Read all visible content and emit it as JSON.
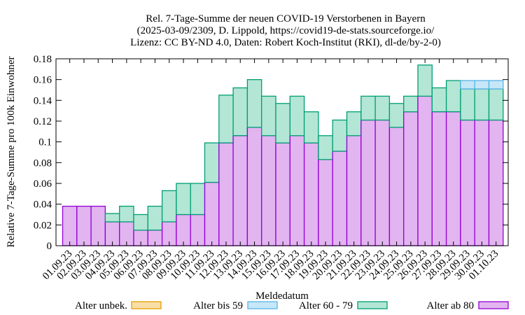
{
  "title": {
    "line1": "Rel. 7-Tage-Summe der neuen COVID-19 Verstorbenen in Bayern",
    "line2": "(2025-03-09/2309, D. Lippold, https://covid19-de-stats.sourceforge.io/",
    "line3": "Lizenz: CC BY-ND 4.0, Daten: Robert Koch-Institut (RKI), dl-de/by-2-0)"
  },
  "chart_data": {
    "type": "bar",
    "stacked": true,
    "xlabel": "Meldedatum",
    "ylabel": "Relative 7-Tage-Summe pro 100k Einwohner",
    "ylim": [
      0,
      0.18
    ],
    "yticks": [
      0,
      0.02,
      0.04,
      0.06,
      0.08,
      0.1,
      0.12,
      0.14,
      0.16,
      0.18
    ],
    "ytick_labels": [
      "0",
      "0.02",
      "0.04",
      "0.06",
      "0.08",
      "0.1",
      "0.12",
      "0.14",
      "0.16",
      "0.18"
    ],
    "grid": false,
    "legend_position": "bottom",
    "categories": [
      "01.09.23",
      "02.09.23",
      "03.09.23",
      "04.09.23",
      "05.09.23",
      "06.09.23",
      "07.09.23",
      "08.09.23",
      "09.09.23",
      "10.09.23",
      "11.09.23",
      "12.09.23",
      "13.09.23",
      "14.09.23",
      "15.09.23",
      "16.09.23",
      "17.09.23",
      "18.09.23",
      "19.09.23",
      "20.09.23",
      "21.09.23",
      "22.09.23",
      "23.09.23",
      "24.09.23",
      "25.09.23",
      "26.09.23",
      "27.09.23",
      "28.09.23",
      "29.09.23",
      "30.09.23",
      "01.10.23"
    ],
    "series": [
      {
        "name": "Alter ab 80",
        "color": "#e2b4f0",
        "edge": "#9400d3",
        "values": [
          0.038,
          0.038,
          0.038,
          0.023,
          0.023,
          0.015,
          0.015,
          0.023,
          0.03,
          0.03,
          0.061,
          0.099,
          0.106,
          0.114,
          0.106,
          0.099,
          0.106,
          0.099,
          0.083,
          0.091,
          0.106,
          0.121,
          0.121,
          0.114,
          0.129,
          0.144,
          0.129,
          0.129,
          0.121,
          0.121,
          0.121
        ]
      },
      {
        "name": "Alter 60 - 79",
        "color": "#b3e6d5",
        "edge": "#009e73",
        "values": [
          0,
          0,
          0,
          0.008,
          0.015,
          0.015,
          0.023,
          0.03,
          0.03,
          0.03,
          0.038,
          0.046,
          0.046,
          0.046,
          0.038,
          0.038,
          0.038,
          0.03,
          0.023,
          0.03,
          0.023,
          0.023,
          0.023,
          0.023,
          0.015,
          0.03,
          0.023,
          0.03,
          0.03,
          0.03,
          0.03
        ]
      },
      {
        "name": "Alter bis 59",
        "color": "#c6e7f7",
        "edge": "#56b4e9",
        "values": [
          0,
          0,
          0,
          0,
          0,
          0,
          0,
          0,
          0,
          0,
          0,
          0,
          0,
          0,
          0,
          0,
          0,
          0,
          0,
          0,
          0,
          0,
          0,
          0,
          0,
          0,
          0,
          0,
          0.008,
          0.008,
          0.008
        ]
      },
      {
        "name": "Alter unbek.",
        "color": "#f8dfa8",
        "edge": "#e69f00",
        "values": [
          0,
          0,
          0,
          0,
          0,
          0,
          0,
          0,
          0,
          0,
          0,
          0,
          0,
          0,
          0,
          0,
          0,
          0,
          0,
          0,
          0,
          0,
          0,
          0,
          0,
          0,
          0,
          0,
          0,
          0,
          0
        ]
      }
    ],
    "legend_order": [
      "Alter unbek.",
      "Alter bis 59",
      "Alter 60 - 79",
      "Alter ab 80"
    ]
  }
}
